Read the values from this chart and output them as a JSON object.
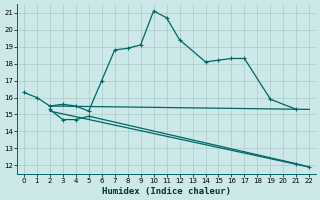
{
  "xlabel": "Humidex (Indice chaleur)",
  "bg_color": "#cce8e8",
  "line_color": "#006666",
  "grid_color": "#aacccc",
  "ylim": [
    11.5,
    21.5
  ],
  "xlim": [
    -0.5,
    22.5
  ],
  "yticks": [
    12,
    13,
    14,
    15,
    16,
    17,
    18,
    19,
    20,
    21
  ],
  "xticks": [
    0,
    1,
    2,
    3,
    4,
    5,
    6,
    7,
    8,
    9,
    10,
    11,
    12,
    13,
    14,
    15,
    16,
    17,
    18,
    19,
    20,
    21,
    22
  ],
  "series": [
    {
      "x": [
        0,
        1,
        2,
        3,
        4,
        5,
        6,
        7,
        8,
        9,
        10,
        11,
        12,
        14,
        15,
        16,
        17,
        19,
        21
      ],
      "y": [
        16.3,
        16.0,
        15.5,
        15.6,
        15.5,
        15.2,
        17.0,
        18.8,
        18.9,
        19.1,
        21.1,
        20.7,
        19.4,
        18.1,
        18.2,
        18.3,
        18.3,
        15.9,
        15.3
      ],
      "markers": true
    },
    {
      "x": [
        2,
        22
      ],
      "y": [
        15.5,
        15.3
      ],
      "markers": false
    },
    {
      "x": [
        2,
        3,
        4,
        5,
        21,
        22
      ],
      "y": [
        15.3,
        14.7,
        14.7,
        14.9,
        12.1,
        11.9
      ],
      "markers": true
    },
    {
      "x": [
        2,
        22
      ],
      "y": [
        15.2,
        11.9
      ],
      "markers": false
    }
  ]
}
